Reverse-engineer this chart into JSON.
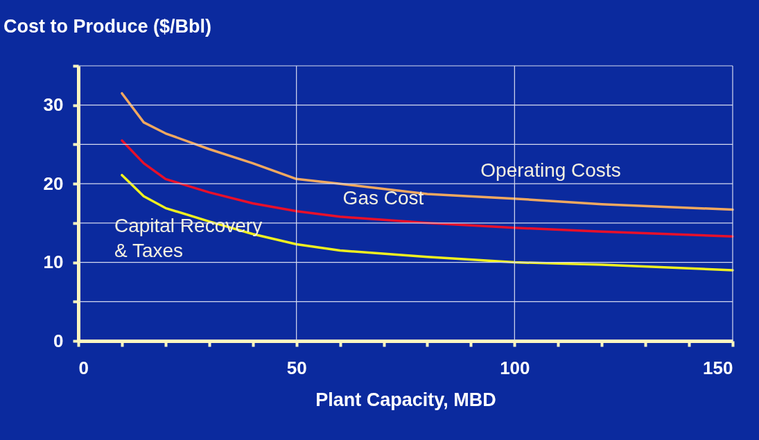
{
  "chart_data": {
    "type": "line",
    "title": "Cost to Produce ($/Bbl)",
    "xlabel": "Plant Capacity, MBD",
    "x": [
      10,
      15,
      20,
      30,
      40,
      50,
      60,
      80,
      100,
      120,
      150
    ],
    "series": [
      {
        "name": "Operating Costs",
        "color": "#f0a860",
        "values": [
          31.5,
          27.8,
          26.4,
          24.4,
          22.6,
          20.6,
          20.0,
          18.7,
          18.1,
          17.4,
          16.7
        ]
      },
      {
        "name": "Gas Cost",
        "color": "#e8102a",
        "values": [
          25.5,
          22.6,
          20.6,
          18.9,
          17.5,
          16.5,
          15.8,
          15.0,
          14.4,
          13.9,
          13.3
        ]
      },
      {
        "name": "Capital Recovery\n& Taxes",
        "color": "#f0f020",
        "values": [
          21.1,
          18.4,
          16.9,
          15.2,
          13.6,
          12.3,
          11.5,
          10.7,
          10.0,
          9.7,
          9.0
        ]
      }
    ],
    "xlim": [
      0,
      150
    ],
    "ylim": [
      0,
      35
    ],
    "xticks": [
      0,
      {
        "value": 10,
        "label": null
      },
      {
        "value": 20,
        "label": null
      },
      {
        "value": 30,
        "label": null
      },
      {
        "value": 40,
        "label": null
      },
      50,
      {
        "value": 60,
        "label": null
      },
      {
        "value": 70,
        "label": null
      },
      {
        "value": 80,
        "label": null
      },
      {
        "value": 90,
        "label": null
      },
      100,
      {
        "value": 110,
        "label": null
      },
      {
        "value": 120,
        "label": null
      },
      {
        "value": 130,
        "label": null
      },
      {
        "value": 140,
        "label": null
      },
      150
    ],
    "yticks": [
      0,
      {
        "value": 5,
        "label": null
      },
      10,
      {
        "value": 15,
        "label": null
      },
      20,
      {
        "value": 25,
        "label": null
      },
      30,
      {
        "value": 35,
        "label": null
      }
    ],
    "grid": true,
    "line_style": "solid",
    "marker": "none",
    "legend": false
  }
}
